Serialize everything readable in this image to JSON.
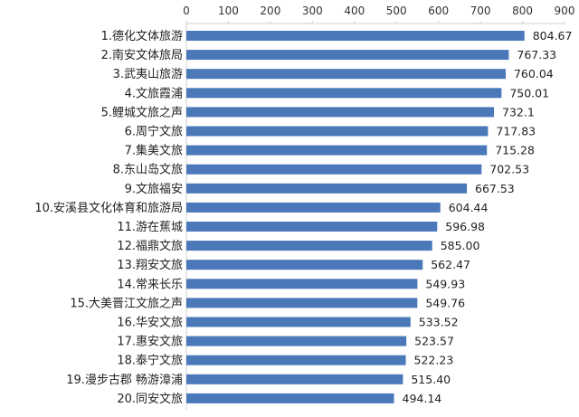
{
  "chart_data": {
    "type": "bar",
    "orientation": "horizontal",
    "categories": [
      "1.德化文体旅游",
      "2.南安文体旅局",
      "3.武夷山旅游",
      "4.文旅霞浦",
      "5.鲤城文旅之声",
      "6.周宁文旅",
      "7.集美文旅",
      "8.东山岛文旅",
      "9.文旅福安",
      "10.安溪县文化体育和旅游局",
      "11.游在蕉城",
      "12.福鼎文旅",
      "13.翔安文旅",
      "14.常来长乐",
      "15.大美晋江文旅之声",
      "16.华安文旅",
      "17.惠安文旅",
      "18.泰宁文旅",
      "19.漫步古郡 畅游漳浦",
      "20.同安文旅"
    ],
    "values": [
      804.67,
      767.33,
      760.04,
      750.01,
      732.1,
      717.83,
      715.28,
      702.53,
      667.53,
      604.44,
      596.98,
      585.0,
      562.47,
      549.93,
      549.76,
      533.52,
      523.57,
      522.23,
      515.4,
      494.14
    ],
    "value_labels": [
      "804.67",
      "767.33",
      "760.04",
      "750.01",
      "732.1",
      "717.83",
      "715.28",
      "702.53",
      "667.53",
      "604.44",
      "596.98",
      "585.00",
      "562.47",
      "549.93",
      "549.76",
      "533.52",
      "523.57",
      "522.23",
      "515.40",
      "494.14"
    ],
    "xlim": [
      0,
      900
    ],
    "x_ticks": [
      0,
      100,
      200,
      300,
      400,
      500,
      600,
      700,
      800,
      900
    ],
    "x_axis_position": "top",
    "title": "",
    "xlabel": "",
    "ylabel": "",
    "grid": false,
    "legend": "none",
    "bar_color": "#4a78b8",
    "axis_color": "#d0d0d0"
  }
}
